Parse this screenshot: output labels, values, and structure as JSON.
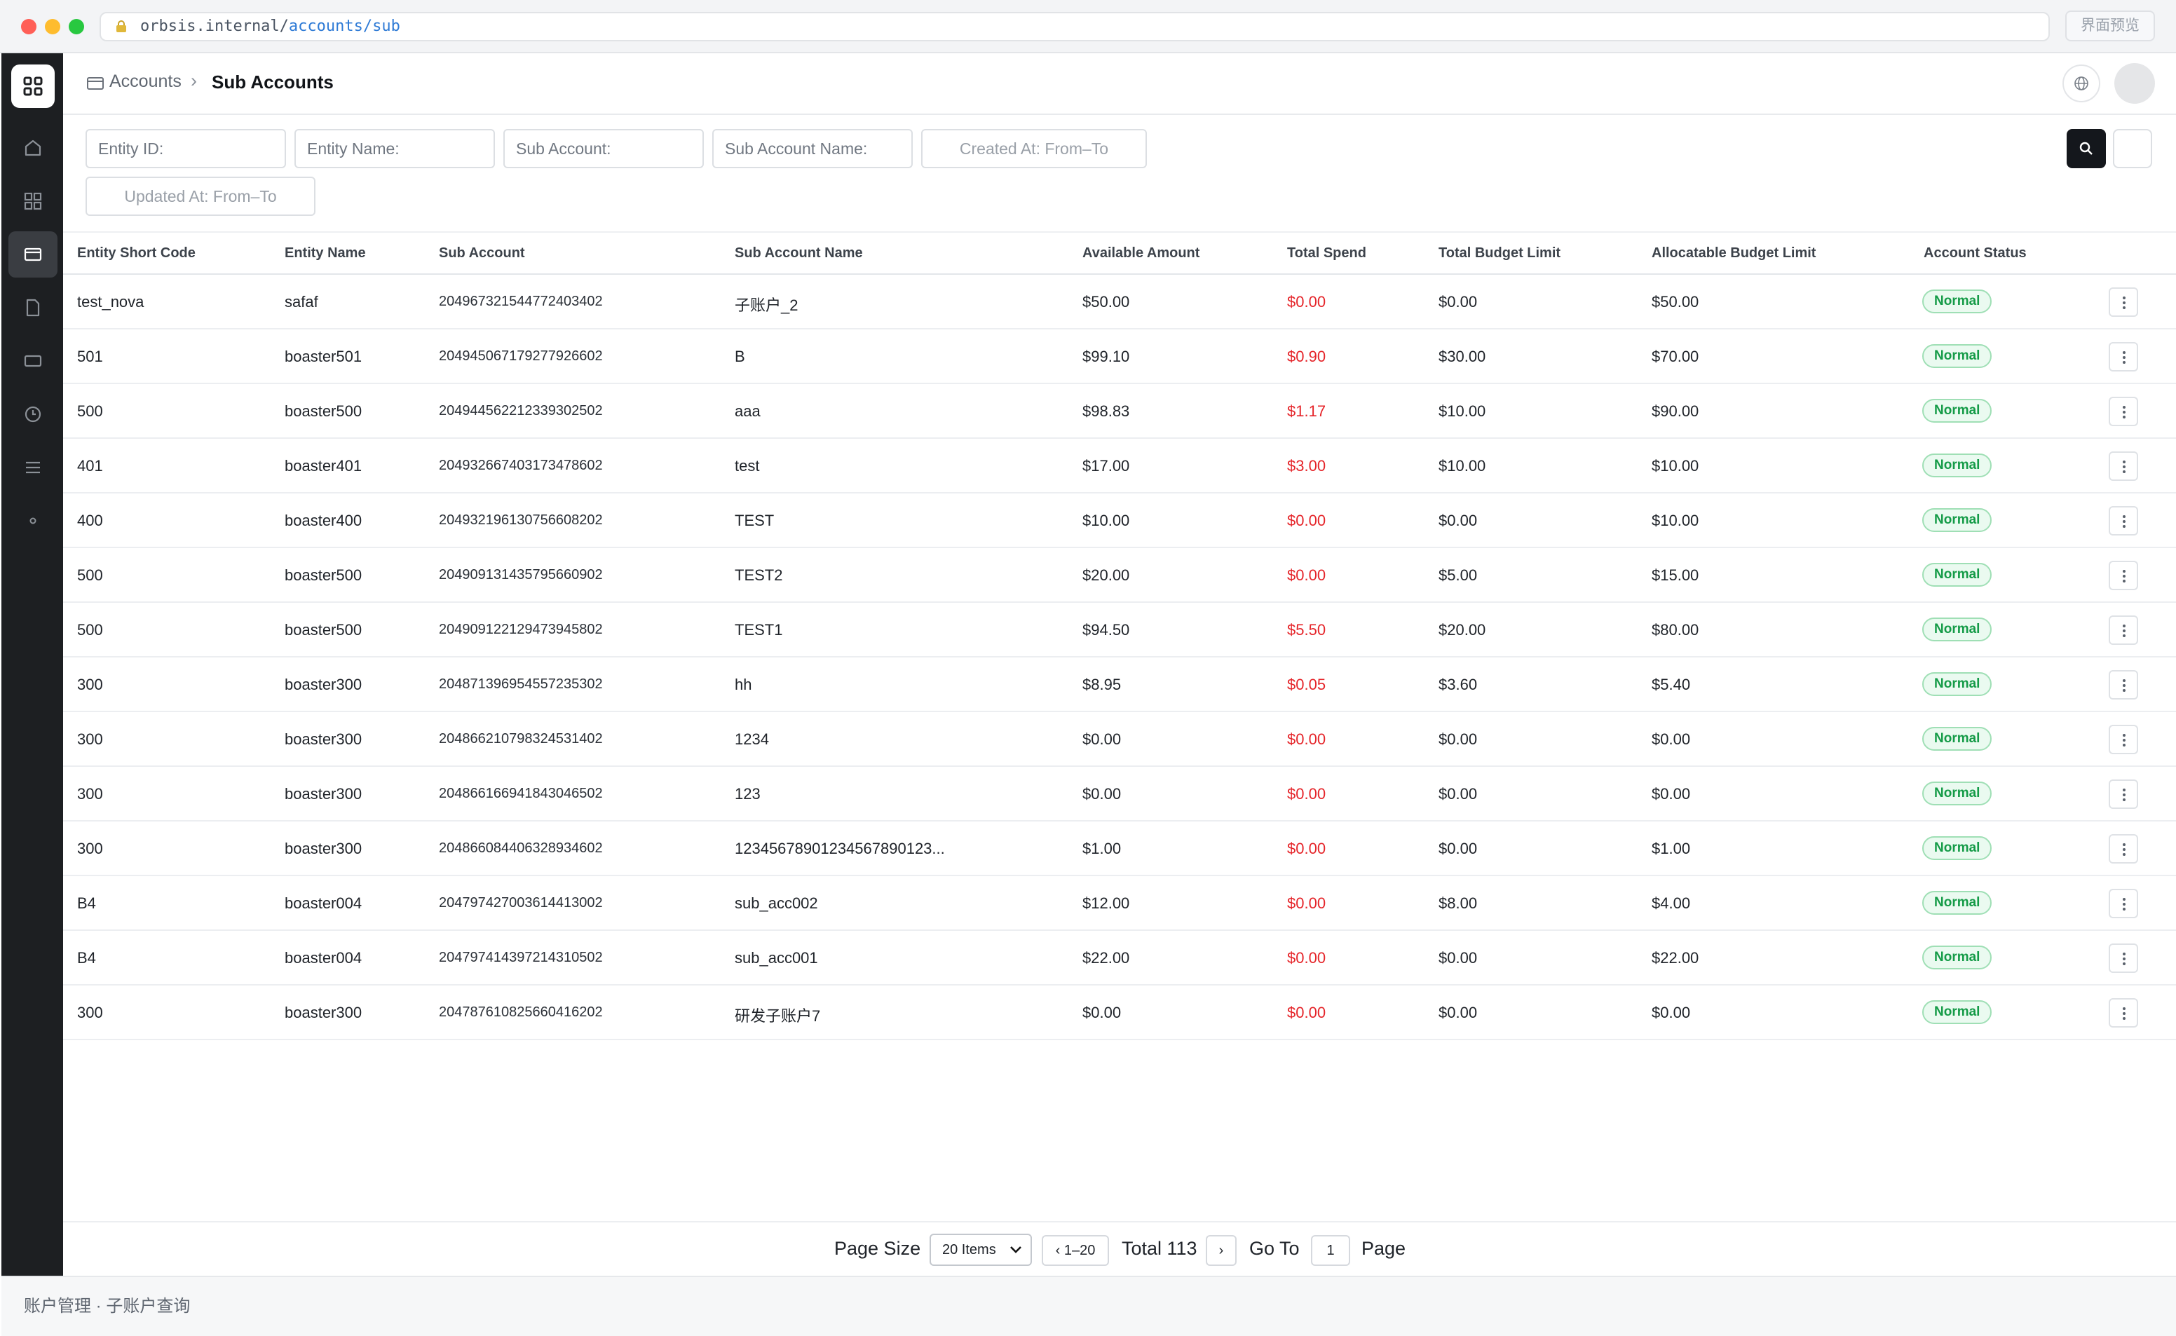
{
  "browser": {
    "url_host": "orbsis.internal/",
    "url_path": "accounts/sub",
    "preview_label": "界面预览"
  },
  "breadcrumb": {
    "parent": "Accounts",
    "separator": "›",
    "current": "Sub Accounts"
  },
  "filters": {
    "entity_id": "Entity ID:",
    "entity_name": "Entity Name:",
    "sub_account": "Sub Account:",
    "sub_account_name": "Sub Account Name:",
    "created_at": "Created At: From–To",
    "updated_at": "Updated At: From–To"
  },
  "table": {
    "columns": [
      "Entity Short Code",
      "Entity Name",
      "Sub Account",
      "Sub Account Name",
      "Available Amount",
      "Total Spend",
      "Total Budget Limit",
      "Allocatable Budget Limit",
      "Account Status"
    ],
    "rows": [
      {
        "code": "test_nova",
        "entity": "safaf",
        "sub": "2049673215447724034​02",
        "name": "子账户_2",
        "available": "$50.00",
        "spend": "$0.00",
        "budget": "$0.00",
        "alloc": "$50.00",
        "status": "Normal"
      },
      {
        "code": "501",
        "entity": "boaster501",
        "sub": "2049450671792779266​02",
        "name": "B",
        "available": "$99.10",
        "spend": "$0.90",
        "budget": "$30.00",
        "alloc": "$70.00",
        "status": "Normal"
      },
      {
        "code": "500",
        "entity": "boaster500",
        "sub": "2049445622123393025​02",
        "name": "aaa",
        "available": "$98.83",
        "spend": "$1.17",
        "budget": "$10.00",
        "alloc": "$90.00",
        "status": "Normal"
      },
      {
        "code": "401",
        "entity": "boaster401",
        "sub": "2049326674031734786​02",
        "name": "test",
        "available": "$17.00",
        "spend": "$3.00",
        "budget": "$10.00",
        "alloc": "$10.00",
        "status": "Normal"
      },
      {
        "code": "400",
        "entity": "boaster400",
        "sub": "2049321961307566082​02",
        "name": "TEST",
        "available": "$10.00",
        "spend": "$0.00",
        "budget": "$0.00",
        "alloc": "$10.00",
        "status": "Normal"
      },
      {
        "code": "500",
        "entity": "boaster500",
        "sub": "2049091314357956609​02",
        "name": "TEST2",
        "available": "$20.00",
        "spend": "$0.00",
        "budget": "$5.00",
        "alloc": "$15.00",
        "status": "Normal"
      },
      {
        "code": "500",
        "entity": "boaster500",
        "sub": "2049091221294739458​02",
        "name": "TEST1",
        "available": "$94.50",
        "spend": "$5.50",
        "budget": "$20.00",
        "alloc": "$80.00",
        "status": "Normal"
      },
      {
        "code": "300",
        "entity": "boaster300",
        "sub": "2048713969545572353​02",
        "name": "hh",
        "available": "$8.95",
        "spend": "$0.05",
        "budget": "$3.60",
        "alloc": "$5.40",
        "status": "Normal"
      },
      {
        "code": "300",
        "entity": "boaster300",
        "sub": "2048662107983245314​02",
        "name": "1234",
        "available": "$0.00",
        "spend": "$0.00",
        "budget": "$0.00",
        "alloc": "$0.00",
        "status": "Normal"
      },
      {
        "code": "300",
        "entity": "boaster300",
        "sub": "2048661669418430465​02",
        "name": "123",
        "available": "$0.00",
        "spend": "$0.00",
        "budget": "$0.00",
        "alloc": "$0.00",
        "status": "Normal"
      },
      {
        "code": "300",
        "entity": "boaster300",
        "sub": "2048660844063289346​02",
        "name": "1234567890123456789012​3...",
        "available": "$1.00",
        "spend": "$0.00",
        "budget": "$0.00",
        "alloc": "$1.00",
        "status": "Normal"
      },
      {
        "code": "B4",
        "entity": "boaster004",
        "sub": "2047974270036144130​02",
        "name": "sub_acc002",
        "available": "$12.00",
        "spend": "$0.00",
        "budget": "$8.00",
        "alloc": "$4.00",
        "status": "Normal"
      },
      {
        "code": "B4",
        "entity": "boaster004",
        "sub": "2047974143972143105​02",
        "name": "sub_acc001",
        "available": "$22.00",
        "spend": "$0.00",
        "budget": "$0.00",
        "alloc": "$22.00",
        "status": "Normal"
      },
      {
        "code": "300",
        "entity": "boaster300",
        "sub": "2047876108256604162​02",
        "name": "研发子账户7",
        "available": "$0.00",
        "spend": "$0.00",
        "budget": "$0.00",
        "alloc": "$0.00",
        "status": "Normal"
      }
    ]
  },
  "pagination": {
    "page_size_label": "Page Size",
    "page_size_value": "20 Items",
    "range": "‹ 1–20",
    "total": "Total 113",
    "next": "›",
    "go_to_label": "Go To",
    "page_input": "1",
    "page_label": "Page"
  },
  "footer": {
    "text": "账户管理 · 子账户查询"
  },
  "colors": {
    "accent_dark": "#14171c",
    "spend_red": "#e5252a",
    "status_green": "#149b47",
    "sidebar_bg": "#1d1f22"
  },
  "icons": {
    "sidebar": [
      "home-icon",
      "grid-icon",
      "card-icon",
      "file-icon",
      "monitor-icon",
      "clock-icon",
      "menu-icon",
      "dot-icon"
    ]
  }
}
